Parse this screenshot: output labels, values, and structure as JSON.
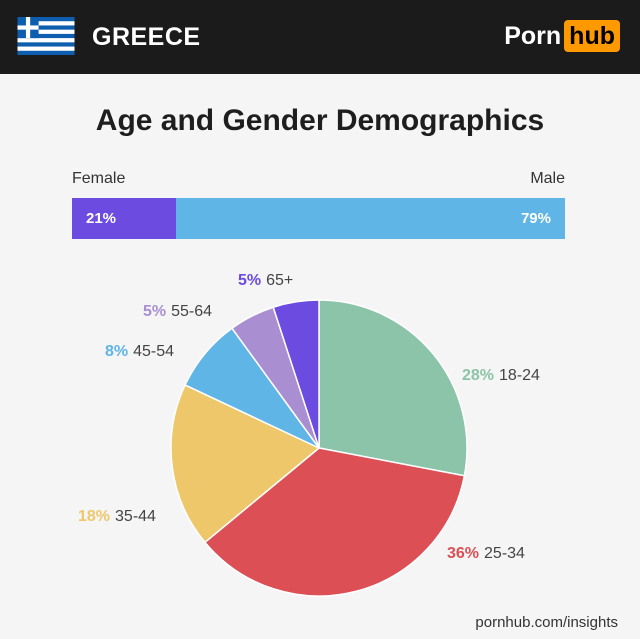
{
  "header": {
    "country": "GREECE",
    "logo_left": "Porn",
    "logo_right": "hub"
  },
  "title": "Age and Gender Demographics",
  "gender": {
    "female_label": "Female",
    "male_label": "Male",
    "female_pct": "21%",
    "male_pct": "79%",
    "female_value": 21,
    "male_value": 79,
    "female_color": "#6b4be0",
    "male_color": "#5fb5e6"
  },
  "chart_data": {
    "type": "pie",
    "categories": [
      "18-24",
      "25-34",
      "35-44",
      "45-54",
      "55-64",
      "65+"
    ],
    "values": [
      28,
      36,
      18,
      8,
      5,
      5
    ],
    "labels": [
      "28%",
      "36%",
      "18%",
      "8%",
      "5%",
      "5%"
    ],
    "colors": [
      "#8cc4a9",
      "#db4f55",
      "#edc76a",
      "#5fb5e6",
      "#a98fd2",
      "#6b4be0"
    ]
  },
  "footer": "pornhub.com/insights"
}
